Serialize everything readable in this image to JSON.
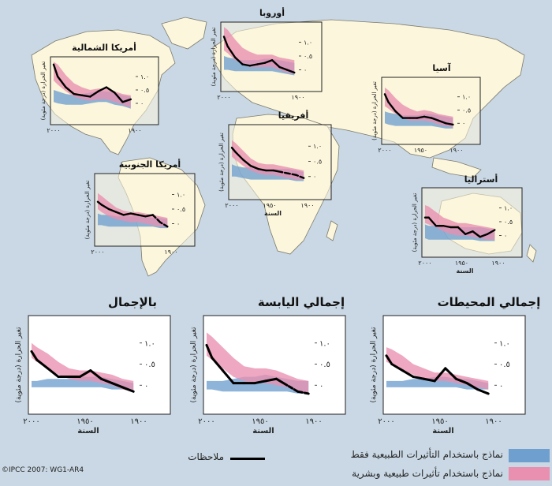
{
  "colors": {
    "natural": "#6f9fcf",
    "combined": "#e98fb0",
    "observed": "#000000",
    "ocean": "#c9d8e4",
    "land": "#fbf6dc"
  },
  "legend": {
    "natural_label": "نماذج باستخدام التأثيرات الطبيعية فقط",
    "combined_label": "نماذج باستخدام تأثيرات طبيعية وبشرية",
    "observed_label": "ملاحظات"
  },
  "credit": "©IPCC 2007: WG1-AR4",
  "chart_data": [
    {
      "id": "north-america",
      "type": "line",
      "title": "أمريكا الشمالية",
      "x": [
        1905,
        1915,
        1925,
        1935,
        1945,
        1955,
        1965,
        1975,
        1985,
        1995,
        2000
      ],
      "ylim": [
        -0.5,
        1.5
      ],
      "xlim": [
        1900,
        2000
      ],
      "yticks": [
        {
          "v": 0,
          "label": "٠"
        },
        {
          "v": 0.5,
          "label": "٠.٥"
        },
        {
          "v": 1,
          "label": "١.٠"
        }
      ],
      "xticks": [
        {
          "v": 1900,
          "label": "١٩٠٠"
        },
        {
          "v": 2000,
          "label": "٢٠٠٠"
        }
      ],
      "xlabel": "",
      "ylabel": "تغير الحرارة (درجة مئوية)",
      "observed": [
        0.15,
        0.05,
        0.4,
        0.6,
        0.45,
        0.25,
        0.3,
        0.35,
        0.6,
        1.0,
        1.45
      ],
      "natural_low": [
        -0.2,
        -0.1,
        -0.05,
        0.05,
        0.05,
        0.0,
        -0.05,
        -0.05,
        -0.05,
        0.0,
        0.05
      ],
      "natural_high": [
        0.25,
        0.3,
        0.4,
        0.45,
        0.45,
        0.4,
        0.35,
        0.3,
        0.35,
        0.45,
        0.5
      ],
      "combined_low": [
        -0.15,
        -0.05,
        0.05,
        0.15,
        0.15,
        0.1,
        0.15,
        0.25,
        0.45,
        0.7,
        0.85
      ],
      "combined_high": [
        0.3,
        0.35,
        0.45,
        0.55,
        0.55,
        0.5,
        0.6,
        0.75,
        1.05,
        1.45,
        1.55
      ]
    },
    {
      "id": "europe",
      "type": "line",
      "title": "أوروبا",
      "x": [
        1905,
        1915,
        1925,
        1935,
        1945,
        1955,
        1965,
        1975,
        1985,
        1995,
        2000
      ],
      "ylim": [
        -0.5,
        1.5
      ],
      "xlim": [
        1900,
        2000
      ],
      "yticks": [
        {
          "v": 0,
          "label": "٠"
        },
        {
          "v": 0.5,
          "label": "٠.٥"
        },
        {
          "v": 1,
          "label": "١.٠"
        }
      ],
      "xticks": [
        {
          "v": 1900,
          "label": "١٩٠٠"
        },
        {
          "v": 2000,
          "label": "٢٠٠٠"
        }
      ],
      "xlabel": "",
      "ylabel": "تغير الحرارة (درجة مئوية)",
      "observed": [
        -0.1,
        0.0,
        0.1,
        0.35,
        0.25,
        0.2,
        0.15,
        0.2,
        0.45,
        0.85,
        1.2
      ],
      "natural_low": [
        -0.2,
        -0.15,
        -0.1,
        -0.05,
        -0.05,
        -0.05,
        -0.05,
        -0.05,
        -0.05,
        0.0,
        0.0
      ],
      "natural_high": [
        0.25,
        0.3,
        0.35,
        0.4,
        0.4,
        0.35,
        0.35,
        0.35,
        0.4,
        0.45,
        0.5
      ],
      "combined_low": [
        -0.15,
        -0.1,
        0.0,
        0.1,
        0.1,
        0.1,
        0.1,
        0.2,
        0.35,
        0.6,
        0.7
      ],
      "combined_high": [
        0.35,
        0.4,
        0.45,
        0.55,
        0.55,
        0.55,
        0.65,
        0.8,
        1.1,
        1.45,
        1.55
      ]
    },
    {
      "id": "asia",
      "type": "line",
      "title": "آسيا",
      "x": [
        1905,
        1915,
        1925,
        1935,
        1945,
        1955,
        1965,
        1975,
        1985,
        1995,
        2000
      ],
      "ylim": [
        -0.5,
        1.5
      ],
      "xlim": [
        1900,
        2000
      ],
      "yticks": [
        {
          "v": 0,
          "label": "٠"
        },
        {
          "v": 0.5,
          "label": "٠.٥"
        },
        {
          "v": 1,
          "label": "١.٠"
        }
      ],
      "xticks": [
        {
          "v": 1900,
          "label": "١٩٠٠"
        },
        {
          "v": 1950,
          "label": "١٩٥٠"
        },
        {
          "v": 2000,
          "label": "٢٠٠٠"
        }
      ],
      "xlabel": "",
      "ylabel": "تغير الحرارة (درجة مئوية)",
      "observed": [
        -0.05,
        0.0,
        0.1,
        0.2,
        0.25,
        0.2,
        0.2,
        0.2,
        0.45,
        0.8,
        1.1
      ],
      "natural_low": [
        -0.2,
        -0.2,
        -0.15,
        -0.1,
        -0.1,
        -0.1,
        -0.1,
        -0.1,
        -0.1,
        -0.05,
        0.0
      ],
      "natural_high": [
        0.2,
        0.25,
        0.3,
        0.35,
        0.35,
        0.3,
        0.3,
        0.3,
        0.35,
        0.4,
        0.45
      ],
      "combined_low": [
        -0.15,
        -0.1,
        -0.05,
        0.05,
        0.1,
        0.1,
        0.1,
        0.2,
        0.35,
        0.55,
        0.65
      ],
      "combined_high": [
        0.25,
        0.3,
        0.35,
        0.45,
        0.5,
        0.45,
        0.55,
        0.7,
        0.95,
        1.25,
        1.35
      ]
    },
    {
      "id": "africa",
      "type": "line",
      "title": "أفريقيا",
      "x": [
        1905,
        1915,
        1925,
        1935,
        1945,
        1955,
        1965,
        1975,
        1985,
        1995,
        2000
      ],
      "ylim": [
        -0.5,
        1.5
      ],
      "xlim": [
        1900,
        2000
      ],
      "yticks": [
        {
          "v": 0,
          "label": "٠"
        },
        {
          "v": 0.5,
          "label": "٠.٥"
        },
        {
          "v": 1,
          "label": "١.٠"
        }
      ],
      "xticks": [
        {
          "v": 1900,
          "label": "١٩٠٠"
        },
        {
          "v": 1950,
          "label": "١٩٥٠"
        },
        {
          "v": 2000,
          "label": "٢٠٠٠"
        }
      ],
      "xlabel": "السنة",
      "ylabel": "تغير الحرارة (درجة مئوية)",
      "observed": [
        -0.05,
        0.05,
        0.1,
        0.15,
        0.2,
        0.2,
        0.25,
        0.35,
        0.55,
        0.8,
        0.95
      ],
      "observed_dashed_until": 1935,
      "natural_low": [
        -0.15,
        -0.15,
        -0.1,
        -0.1,
        -0.1,
        -0.1,
        -0.1,
        -0.1,
        -0.05,
        0.0,
        0.0
      ],
      "natural_high": [
        0.15,
        0.2,
        0.25,
        0.25,
        0.25,
        0.25,
        0.25,
        0.3,
        0.3,
        0.35,
        0.4
      ],
      "combined_low": [
        -0.1,
        -0.1,
        -0.05,
        0.0,
        0.05,
        0.05,
        0.1,
        0.2,
        0.35,
        0.55,
        0.65
      ],
      "combined_high": [
        0.2,
        0.25,
        0.3,
        0.35,
        0.4,
        0.4,
        0.45,
        0.6,
        0.85,
        1.1,
        1.2
      ]
    },
    {
      "id": "south-america",
      "type": "line",
      "title": "أمريكا الجنوبية",
      "x": [
        1905,
        1915,
        1925,
        1935,
        1945,
        1955,
        1965,
        1975,
        1985,
        1995,
        2000
      ],
      "ylim": [
        -0.5,
        1.5
      ],
      "xlim": [
        1900,
        2000
      ],
      "yticks": [
        {
          "v": 0,
          "label": "٠"
        },
        {
          "v": 0.5,
          "label": "٠.٥"
        },
        {
          "v": 1,
          "label": "١.٠"
        }
      ],
      "xticks": [
        {
          "v": 1900,
          "label": "١٩٠٠"
        },
        {
          "v": 2000,
          "label": "٢٠٠٠"
        }
      ],
      "xlabel": "",
      "ylabel": "تغير الحرارة (درجة مئوية)",
      "observed": [
        -0.1,
        0.05,
        0.3,
        0.25,
        0.3,
        0.35,
        0.3,
        0.4,
        0.5,
        0.65,
        0.75
      ],
      "observed_dashed_until": 1925,
      "natural_low": [
        -0.15,
        -0.15,
        -0.1,
        -0.1,
        -0.1,
        -0.1,
        -0.1,
        -0.1,
        -0.1,
        -0.05,
        -0.05
      ],
      "natural_high": [
        0.15,
        0.2,
        0.2,
        0.25,
        0.25,
        0.25,
        0.25,
        0.25,
        0.3,
        0.3,
        0.35
      ],
      "combined_low": [
        -0.1,
        -0.1,
        -0.05,
        0.0,
        0.05,
        0.05,
        0.1,
        0.15,
        0.25,
        0.4,
        0.5
      ],
      "combined_high": [
        0.2,
        0.25,
        0.3,
        0.35,
        0.4,
        0.4,
        0.45,
        0.55,
        0.75,
        0.95,
        1.05
      ]
    },
    {
      "id": "australia",
      "type": "line",
      "title": "أستراليا",
      "x": [
        1905,
        1915,
        1925,
        1935,
        1945,
        1955,
        1965,
        1975,
        1985,
        1995,
        2000
      ],
      "ylim": [
        -0.5,
        1.5
      ],
      "xlim": [
        1900,
        2000
      ],
      "yticks": [
        {
          "v": 0,
          "label": "٠"
        },
        {
          "v": 0.5,
          "label": "٠.٥"
        },
        {
          "v": 1,
          "label": "١.٠"
        }
      ],
      "xticks": [
        {
          "v": 1900,
          "label": "١٩٠٠"
        },
        {
          "v": 1950,
          "label": "١٩٥٠"
        },
        {
          "v": 2000,
          "label": "٢٠٠٠"
        }
      ],
      "xlabel": "السنة",
      "ylabel": "تغير الحرارة (درجة مئوية)",
      "observed": [
        0.2,
        0.05,
        -0.05,
        0.15,
        0.05,
        0.3,
        0.3,
        0.35,
        0.35,
        0.65,
        0.65
      ],
      "natural_low": [
        -0.2,
        -0.2,
        -0.2,
        -0.15,
        -0.15,
        -0.15,
        -0.15,
        -0.15,
        -0.15,
        -0.15,
        -0.1
      ],
      "natural_high": [
        0.2,
        0.25,
        0.3,
        0.3,
        0.3,
        0.3,
        0.3,
        0.3,
        0.35,
        0.35,
        0.4
      ],
      "combined_low": [
        -0.15,
        -0.15,
        -0.1,
        -0.05,
        0.0,
        0.0,
        0.05,
        0.15,
        0.3,
        0.4,
        0.45
      ],
      "combined_high": [
        0.25,
        0.3,
        0.35,
        0.4,
        0.45,
        0.45,
        0.55,
        0.65,
        0.85,
        1.05,
        1.1
      ]
    },
    {
      "id": "global",
      "type": "line",
      "title": "بالإجمال",
      "x": [
        1905,
        1915,
        1925,
        1935,
        1945,
        1955,
        1965,
        1975,
        1985,
        1995,
        2000
      ],
      "ylim": [
        -0.5,
        1.5
      ],
      "xlim": [
        1900,
        2000
      ],
      "yticks": [
        {
          "v": 0,
          "label": "٠"
        },
        {
          "v": 0.5,
          "label": "٠.٥"
        },
        {
          "v": 1,
          "label": "١.٠"
        }
      ],
      "xticks": [
        {
          "v": 1900,
          "label": "١٩٠٠"
        },
        {
          "v": 1950,
          "label": "١٩٥٠"
        },
        {
          "v": 2000,
          "label": "٢٠٠٠"
        }
      ],
      "xlabel": "السنة",
      "ylabel": "تغير الحرارة (درجة مئوية)",
      "observed": [
        -0.15,
        -0.05,
        0.05,
        0.15,
        0.35,
        0.2,
        0.2,
        0.2,
        0.4,
        0.6,
        0.8
      ],
      "natural_low": [
        -0.15,
        -0.1,
        -0.1,
        -0.05,
        -0.05,
        -0.05,
        -0.05,
        -0.05,
        -0.05,
        -0.05,
        -0.05
      ],
      "natural_high": [
        0.05,
        0.1,
        0.15,
        0.2,
        0.2,
        0.2,
        0.15,
        0.15,
        0.15,
        0.1,
        0.1
      ],
      "combined_low": [
        -0.15,
        -0.1,
        0.0,
        0.05,
        0.1,
        0.1,
        0.15,
        0.25,
        0.4,
        0.55,
        0.65
      ],
      "combined_high": [
        0.1,
        0.15,
        0.25,
        0.3,
        0.35,
        0.35,
        0.4,
        0.55,
        0.75,
        0.9,
        1.0
      ]
    },
    {
      "id": "global-land",
      "type": "line",
      "title": "إجمالي اليابسة",
      "x": [
        1905,
        1915,
        1925,
        1935,
        1945,
        1955,
        1965,
        1975,
        1985,
        1995,
        2000
      ],
      "ylim": [
        -0.5,
        1.5
      ],
      "xlim": [
        1900,
        2000
      ],
      "yticks": [
        {
          "v": 0,
          "label": "٠"
        },
        {
          "v": 0.5,
          "label": "٠.٥"
        },
        {
          "v": 1,
          "label": "١.٠"
        }
      ],
      "xticks": [
        {
          "v": 1900,
          "label": "١٩٠٠"
        },
        {
          "v": 1950,
          "label": "١٩٥٠"
        },
        {
          "v": 2000,
          "label": "٢٠٠٠"
        }
      ],
      "xlabel": "السنة",
      "ylabel": "تغير الحرارة (درجة مئوية)",
      "observed": [
        -0.2,
        -0.15,
        0.0,
        0.15,
        0.1,
        0.05,
        0.05,
        0.05,
        0.35,
        0.65,
        0.95
      ],
      "observed_dashed_until": 1925,
      "natural_low": [
        -0.2,
        -0.2,
        -0.15,
        -0.15,
        -0.15,
        -0.15,
        -0.15,
        -0.15,
        -0.15,
        -0.1,
        -0.1
      ],
      "natural_high": [
        0.1,
        0.1,
        0.15,
        0.2,
        0.25,
        0.2,
        0.2,
        0.15,
        0.1,
        0.1,
        0.1
      ],
      "combined_low": [
        -0.2,
        -0.15,
        -0.05,
        0.0,
        0.05,
        0.05,
        0.1,
        0.2,
        0.4,
        0.6,
        0.7
      ],
      "combined_high": [
        0.1,
        0.15,
        0.25,
        0.35,
        0.4,
        0.4,
        0.45,
        0.65,
        0.9,
        1.15,
        1.25
      ]
    },
    {
      "id": "global-ocean",
      "type": "line",
      "title": "إجمالي المحيطات",
      "x": [
        1905,
        1915,
        1925,
        1935,
        1945,
        1955,
        1965,
        1975,
        1985,
        1995,
        2000
      ],
      "ylim": [
        -0.5,
        1.5
      ],
      "xlim": [
        1900,
        2000
      ],
      "yticks": [
        {
          "v": 0,
          "label": "٠"
        },
        {
          "v": 0.5,
          "label": "٠.٥"
        },
        {
          "v": 1,
          "label": "١.٠"
        }
      ],
      "xticks": [
        {
          "v": 1900,
          "label": "١٩٠٠"
        },
        {
          "v": 1950,
          "label": "١٩٥٠"
        },
        {
          "v": 2000,
          "label": "٢٠٠٠"
        }
      ],
      "xlabel": "السنة",
      "ylabel": "تغير الحرارة (درجة مئوية)",
      "observed": [
        -0.2,
        -0.1,
        0.05,
        0.15,
        0.4,
        0.1,
        0.15,
        0.2,
        0.35,
        0.5,
        0.7
      ],
      "natural_low": [
        -0.1,
        -0.1,
        -0.1,
        -0.05,
        -0.05,
        -0.05,
        -0.05,
        -0.05,
        -0.05,
        -0.05,
        -0.05
      ],
      "natural_high": [
        0.05,
        0.1,
        0.15,
        0.15,
        0.2,
        0.2,
        0.15,
        0.15,
        0.1,
        0.1,
        0.1
      ],
      "combined_low": [
        -0.1,
        -0.05,
        0.0,
        0.05,
        0.1,
        0.1,
        0.15,
        0.25,
        0.35,
        0.5,
        0.55
      ],
      "combined_high": [
        0.1,
        0.15,
        0.2,
        0.25,
        0.3,
        0.3,
        0.4,
        0.5,
        0.7,
        0.85,
        0.9
      ]
    }
  ]
}
